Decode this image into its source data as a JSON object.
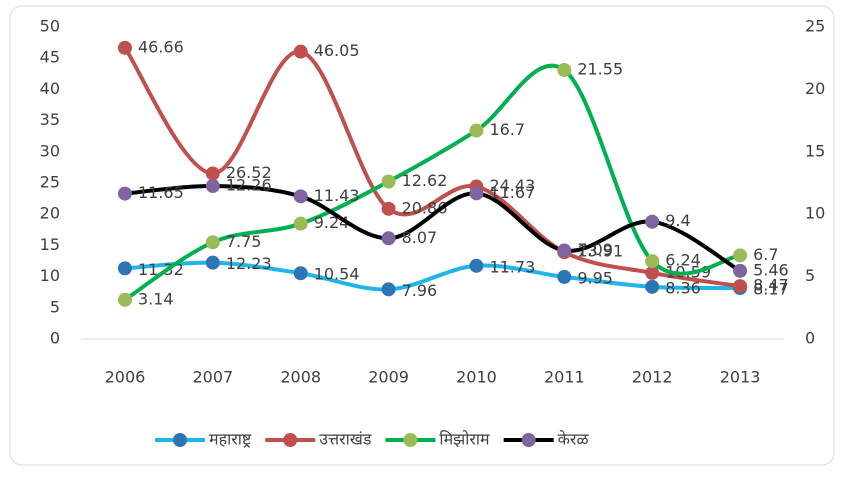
{
  "chart_data": {
    "type": "line",
    "categories": [
      "2006",
      "2007",
      "2008",
      "2009",
      "2010",
      "2011",
      "2012",
      "2013"
    ],
    "ylim": [
      0,
      50
    ],
    "yticks": [
      0,
      5,
      10,
      15,
      20,
      25,
      30,
      35,
      40,
      45,
      50
    ],
    "y2lim": [
      0,
      25
    ],
    "y2ticks": [
      0,
      5,
      10,
      15,
      20,
      25
    ],
    "grid": false,
    "smooth": true,
    "legend": "bottom",
    "series": [
      {
        "name": "महाराष्ट्र",
        "color": "#1fb4ea",
        "marker_color": "#2e75b6",
        "values": [
          11.32,
          12.23,
          10.54,
          7.96,
          11.73,
          9.95,
          8.36,
          8.17
        ]
      },
      {
        "name": "उत्तराखंड",
        "color": "#c0504d",
        "marker_color": "#c0504d",
        "values": [
          46.66,
          26.52,
          46.05,
          20.86,
          24.43,
          13.91,
          10.59,
          8.47
        ]
      },
      {
        "name": "मिझोराम",
        "color": "#00b050",
        "marker_color": "#9bbb59",
        "axis": "y2",
        "values": [
          3.14,
          7.75,
          9.24,
          12.62,
          16.7,
          21.55,
          6.24,
          6.7
        ]
      },
      {
        "name": "केरळ",
        "color": "#000000",
        "marker_color": "#8064a2",
        "axis": "y2",
        "values": [
          11.65,
          12.26,
          11.43,
          8.07,
          11.67,
          7.09,
          9.4,
          5.46
        ]
      }
    ]
  }
}
